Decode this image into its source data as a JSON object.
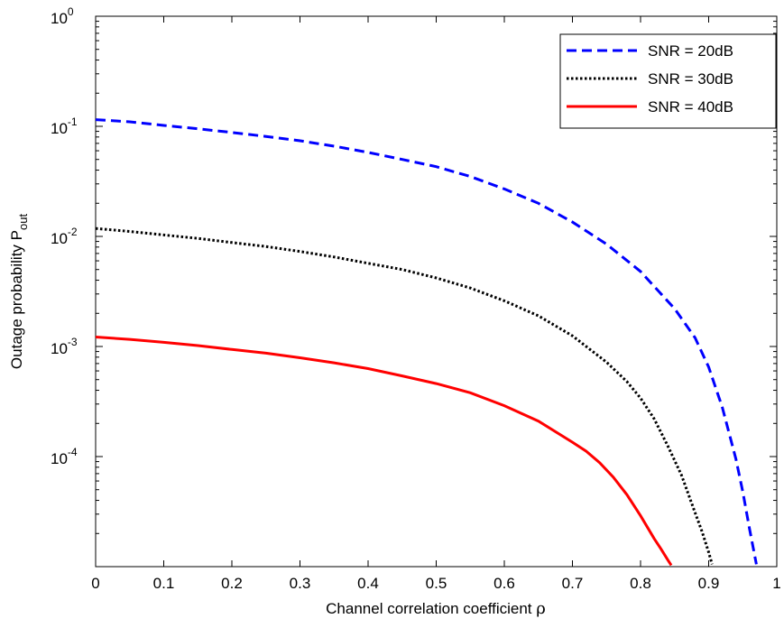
{
  "chart_data": {
    "type": "line",
    "x_axis": {
      "label": "Channel correlation coefficient ",
      "label_symbol": "ρ",
      "lim": [
        0,
        1
      ],
      "ticks": [
        0,
        0.1,
        0.2,
        0.3,
        0.4,
        0.5,
        0.6,
        0.7,
        0.8,
        0.9,
        1
      ],
      "tick_labels": [
        "0",
        "0.1",
        "0.2",
        "0.3",
        "0.4",
        "0.5",
        "0.6",
        "0.7",
        "0.8",
        "0.9",
        "1"
      ]
    },
    "y_axis": {
      "label": "Outage probability P",
      "label_subscript": "out",
      "scale": "log",
      "lim": [
        1e-05,
        1
      ],
      "ticks": [
        {
          "value": 1,
          "base": "10",
          "exp": "0"
        },
        {
          "value": 0.1,
          "base": "10",
          "exp": "-1"
        },
        {
          "value": 0.01,
          "base": "10",
          "exp": "-2"
        },
        {
          "value": 0.001,
          "base": "10",
          "exp": "-3"
        },
        {
          "value": 0.0001,
          "base": "10",
          "exp": "-4"
        }
      ]
    },
    "grid": false,
    "legend_position": "top-right",
    "series": [
      {
        "name": "SNR = 20dB",
        "color": "#0000ff",
        "style": "dashed",
        "x": [
          0,
          0.05,
          0.1,
          0.15,
          0.2,
          0.25,
          0.3,
          0.35,
          0.4,
          0.45,
          0.5,
          0.55,
          0.6,
          0.65,
          0.7,
          0.75,
          0.8,
          0.85,
          0.88,
          0.9,
          0.92,
          0.94,
          0.95,
          0.96,
          0.97
        ],
        "y": [
          0.115,
          0.11,
          0.102,
          0.095,
          0.088,
          0.081,
          0.074,
          0.066,
          0.058,
          0.05,
          0.043,
          0.035,
          0.027,
          0.02,
          0.0135,
          0.0085,
          0.0048,
          0.0022,
          0.0012,
          0.00065,
          0.00028,
          9.5e-05,
          4.8e-05,
          2.2e-05,
          1.05e-05
        ]
      },
      {
        "name": "SNR = 30dB",
        "color": "#000000",
        "style": "dotted",
        "x": [
          0,
          0.05,
          0.1,
          0.15,
          0.2,
          0.25,
          0.3,
          0.35,
          0.4,
          0.45,
          0.5,
          0.55,
          0.6,
          0.65,
          0.7,
          0.75,
          0.78,
          0.8,
          0.82,
          0.84,
          0.86,
          0.88,
          0.89,
          0.9,
          0.905
        ],
        "y": [
          0.0118,
          0.0111,
          0.0103,
          0.0096,
          0.0088,
          0.0081,
          0.0073,
          0.0065,
          0.0057,
          0.005,
          0.0042,
          0.0034,
          0.0026,
          0.0019,
          0.00125,
          0.00072,
          0.00048,
          0.00034,
          0.00022,
          0.000125,
          6.8e-05,
          3.1e-05,
          2.1e-05,
          1.35e-05,
          1.05e-05
        ]
      },
      {
        "name": "SNR = 40dB",
        "color": "#ff0000",
        "style": "solid",
        "x": [
          0,
          0.05,
          0.1,
          0.15,
          0.2,
          0.25,
          0.3,
          0.35,
          0.4,
          0.45,
          0.5,
          0.55,
          0.6,
          0.65,
          0.7,
          0.72,
          0.74,
          0.76,
          0.78,
          0.8,
          0.82,
          0.83,
          0.84,
          0.845
        ],
        "y": [
          0.00122,
          0.00116,
          0.00109,
          0.00102,
          0.00094,
          0.00087,
          0.00079,
          0.00071,
          0.00063,
          0.00054,
          0.00046,
          0.00038,
          0.00029,
          0.00021,
          0.000135,
          0.000112,
          8.8e-05,
          6.5e-05,
          4.5e-05,
          2.9e-05,
          1.8e-05,
          1.45e-05,
          1.15e-05,
          1.03e-05
        ]
      }
    ]
  }
}
